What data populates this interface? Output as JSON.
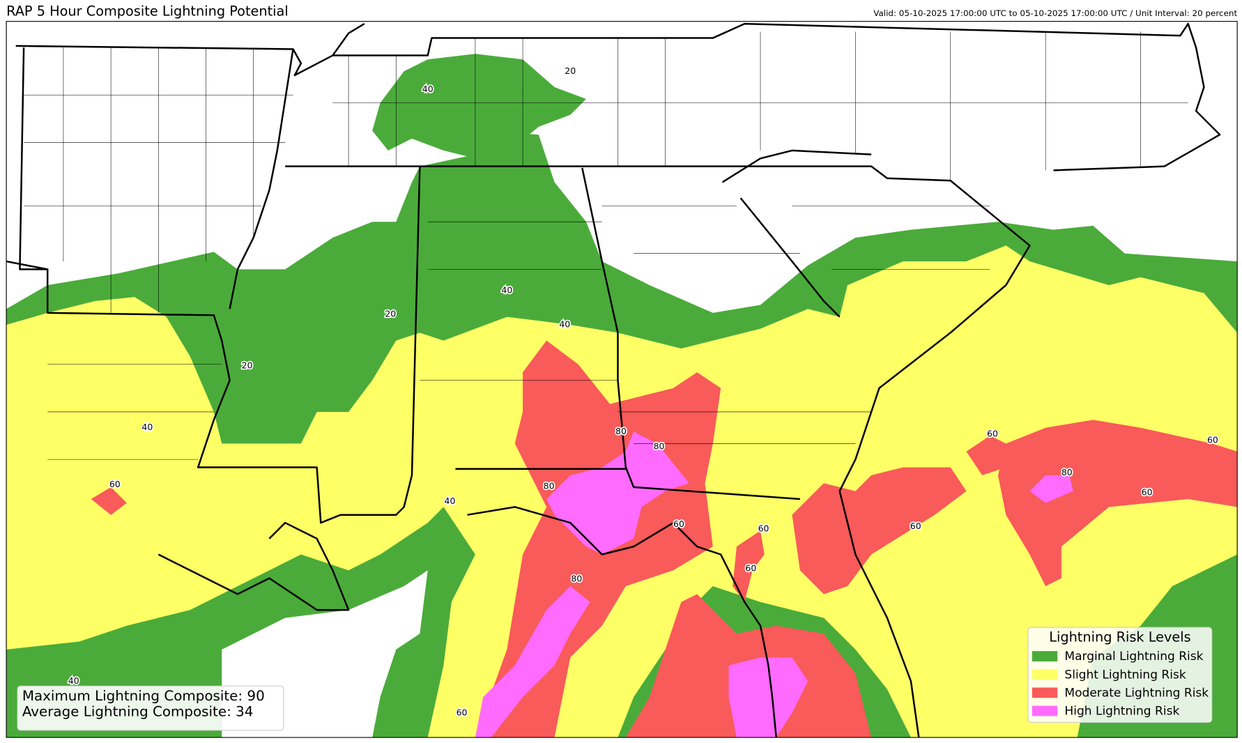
{
  "header": {
    "title": "RAP 5 Hour Composite Lightning Potential",
    "valid": "Valid: 05-10-2025 17:00:00 UTC to 05-10-2025 17:00:00 UTC / Unit Interval: 20 percent"
  },
  "legend": {
    "title": "Lightning Risk Levels",
    "items": [
      {
        "label": "Marginal Lightning Risk",
        "color": "#4aab3a"
      },
      {
        "label": "Slight Lightning Risk",
        "color": "#ffff66"
      },
      {
        "label": "Moderate Lightning Risk",
        "color": "#f95a5a"
      },
      {
        "label": "High Lightning Risk",
        "color": "#ff6bff"
      }
    ]
  },
  "stats": {
    "max_label": "Maximum Lightning Composite:",
    "max_value": 90,
    "avg_label": "Average Lightning Composite:",
    "avg_value": 34
  },
  "contour_labels": [
    40,
    20,
    40,
    40,
    20,
    20,
    40,
    60,
    40,
    80,
    80,
    80,
    60,
    60,
    60,
    80,
    60,
    60,
    80,
    60,
    60,
    40,
    60
  ]
}
